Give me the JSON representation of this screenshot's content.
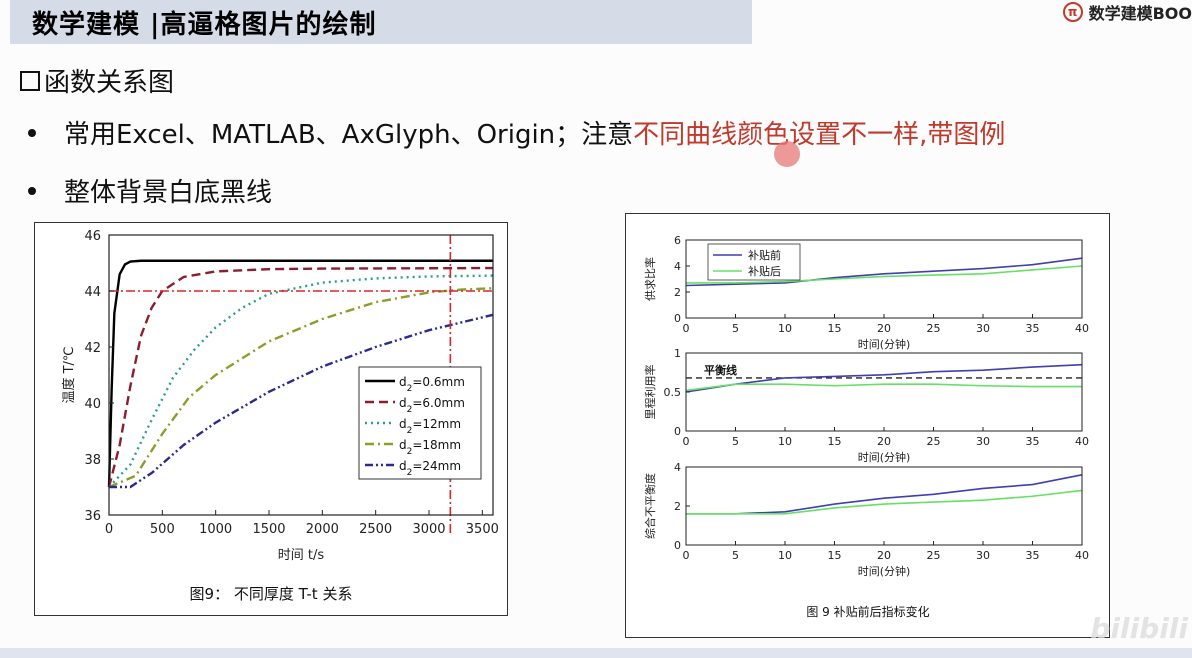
{
  "header": {
    "title": "数学建模 |高逼格图片的绘制",
    "brand": "数学建模BOO",
    "brand_icon": "pi-logo-icon"
  },
  "section": {
    "heading": "函数关系图"
  },
  "bullets": [
    {
      "normal": "常用Excel、MATLAB、AxGlyph、Origin；注意",
      "highlight": "不同曲线颜色设置不一样,带图例"
    },
    {
      "normal": "整体背景白底黑线",
      "highlight": ""
    }
  ],
  "chart_data": [
    {
      "type": "line",
      "xlabel": "时间 t/s",
      "ylabel": "温度 T/℃",
      "xlim": [
        0,
        3600
      ],
      "ylim": [
        36,
        46
      ],
      "xticks": [
        0,
        500,
        1000,
        1500,
        2000,
        2500,
        3000,
        3500
      ],
      "yticks": [
        36,
        38,
        40,
        42,
        44,
        46
      ],
      "caption": "图9：  不同厚度 T-t 关系",
      "legend_position": "middle-right",
      "reference_lines": [
        {
          "orientation": "horizontal",
          "value": 44,
          "color": "#d62728"
        },
        {
          "orientation": "vertical",
          "value": 3200,
          "color": "#d62728"
        }
      ],
      "series": [
        {
          "name_sub": "2",
          "name_rest": "=0.6mm",
          "color": "#000000",
          "style": "solid",
          "x": [
            0,
            25,
            50,
            100,
            150,
            200,
            300,
            500,
            1000,
            3600
          ],
          "y": [
            37,
            40.5,
            43.2,
            44.6,
            44.95,
            45.05,
            45.08,
            45.08,
            45.08,
            45.08
          ]
        },
        {
          "name_sub": "2",
          "name_rest": "=6.0mm",
          "color": "#8b1e2e",
          "style": "dash",
          "x": [
            0,
            100,
            200,
            300,
            400,
            500,
            700,
            1000,
            1500,
            2000,
            3600
          ],
          "y": [
            37,
            38.5,
            40.6,
            42.4,
            43.4,
            44.0,
            44.5,
            44.7,
            44.78,
            44.8,
            44.82
          ]
        },
        {
          "name_sub": "2",
          "name_rest": "=12mm",
          "color": "#2a9d8f",
          "style": "dot",
          "x": [
            0,
            200,
            400,
            600,
            800,
            1000,
            1250,
            1500,
            2000,
            2500,
            3000,
            3600
          ],
          "y": [
            37,
            37.8,
            39.4,
            40.9,
            41.9,
            42.7,
            43.4,
            43.9,
            44.3,
            44.45,
            44.52,
            44.55
          ]
        },
        {
          "name_sub": "2",
          "name_rest": "=18mm",
          "color": "#8b9d2a",
          "style": "dashdot",
          "x": [
            0,
            250,
            500,
            750,
            1000,
            1500,
            2000,
            2500,
            3000,
            3300,
            3600
          ],
          "y": [
            37,
            37.4,
            38.9,
            40.2,
            41.0,
            42.2,
            43.0,
            43.6,
            43.95,
            44.05,
            44.1
          ]
        },
        {
          "name_sub": "2",
          "name_rest": "=24mm",
          "color": "#2b2b8f",
          "style": "dashdotdot",
          "x": [
            0,
            200,
            400,
            700,
            1000,
            1500,
            2000,
            2500,
            3000,
            3600
          ],
          "y": [
            37,
            37.0,
            37.5,
            38.5,
            39.3,
            40.4,
            41.3,
            42.0,
            42.6,
            43.15
          ]
        }
      ]
    },
    {
      "type": "line",
      "caption": "图 9  补贴前后指标变化",
      "xlabel": "时间(分钟)",
      "xlim": [
        0,
        40
      ],
      "xticks": [
        0,
        5,
        10,
        15,
        20,
        25,
        30,
        35,
        40
      ],
      "legend_position": "top-left",
      "legend": [
        {
          "name": "补贴前",
          "color": "#3f3fb0"
        },
        {
          "name": "补贴后",
          "color": "#66e066"
        }
      ],
      "subplots": [
        {
          "ylabel": "供求比率",
          "ylim": [
            0,
            6
          ],
          "yticks": [
            0,
            2,
            4,
            6
          ],
          "series": [
            {
              "name": "补贴前",
              "x": [
                0,
                5,
                10,
                15,
                20,
                25,
                30,
                35,
                40
              ],
              "y": [
                2.5,
                2.6,
                2.7,
                3.1,
                3.4,
                3.6,
                3.8,
                4.1,
                4.6
              ]
            },
            {
              "name": "补贴后",
              "x": [
                0,
                5,
                10,
                15,
                20,
                25,
                30,
                35,
                40
              ],
              "y": [
                2.7,
                2.7,
                2.8,
                3.0,
                3.2,
                3.3,
                3.4,
                3.7,
                4.0
              ]
            }
          ]
        },
        {
          "ylabel": "里程利用率",
          "ylim": [
            0,
            1
          ],
          "yticks": [
            0,
            0.5,
            1
          ],
          "annotation": "平衡线",
          "balance_value": 0.68,
          "series": [
            {
              "name": "补贴前",
              "x": [
                0,
                5,
                10,
                15,
                20,
                25,
                30,
                35,
                40
              ],
              "y": [
                0.5,
                0.6,
                0.68,
                0.7,
                0.72,
                0.76,
                0.78,
                0.82,
                0.85
              ]
            },
            {
              "name": "补贴后",
              "x": [
                0,
                5,
                10,
                15,
                20,
                25,
                30,
                35,
                40
              ],
              "y": [
                0.52,
                0.6,
                0.6,
                0.58,
                0.6,
                0.6,
                0.58,
                0.57,
                0.57
              ]
            }
          ]
        },
        {
          "ylabel": "综合不平衡度",
          "ylim": [
            0,
            4
          ],
          "yticks": [
            0,
            2,
            4
          ],
          "series": [
            {
              "name": "补贴前",
              "x": [
                0,
                5,
                10,
                15,
                20,
                25,
                30,
                35,
                40
              ],
              "y": [
                1.6,
                1.6,
                1.7,
                2.1,
                2.4,
                2.6,
                2.9,
                3.1,
                3.6
              ]
            },
            {
              "name": "补贴后",
              "x": [
                0,
                5,
                10,
                15,
                20,
                25,
                30,
                35,
                40
              ],
              "y": [
                1.6,
                1.6,
                1.6,
                1.9,
                2.1,
                2.2,
                2.3,
                2.5,
                2.8
              ]
            }
          ]
        }
      ]
    }
  ]
}
